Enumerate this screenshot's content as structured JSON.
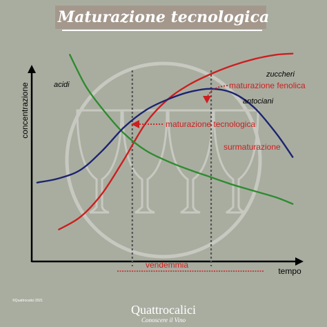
{
  "chart_data": {
    "type": "line",
    "title": "Maturazione tecnologica",
    "xlabel": "tempo",
    "ylabel": "concentrazione",
    "xlim": [
      0,
      100
    ],
    "ylim": [
      0,
      100
    ],
    "series": [
      {
        "name": "zuccheri",
        "color": "#cc1f1f",
        "x": [
          10,
          18,
          26,
          34,
          42,
          50,
          58,
          66,
          74,
          82,
          90,
          96
        ],
        "y": [
          15,
          21,
          32,
          48,
          65,
          76,
          83,
          88,
          92,
          95,
          97,
          97.5
        ]
      },
      {
        "name": "acidi",
        "color": "#2e8b2e",
        "x": [
          14,
          20,
          27,
          34,
          42,
          50,
          58,
          66,
          74,
          82,
          90,
          96
        ],
        "y": [
          97,
          82,
          70,
          60,
          52,
          47,
          43,
          39.5,
          36,
          33,
          30,
          27
        ]
      },
      {
        "name": "antociani",
        "color": "#1c2370",
        "x": [
          2,
          10,
          18,
          26,
          34,
          42,
          50,
          58,
          66,
          74,
          82,
          90,
          96
        ],
        "y": [
          37,
          39,
          43,
          52,
          63,
          71,
          76,
          79.5,
          81,
          79,
          72,
          60,
          49
        ]
      }
    ],
    "vlines": [
      {
        "x": 37,
        "label": "maturazione tecnologica"
      },
      {
        "x": 66,
        "label": "maturazione fenolica"
      }
    ],
    "annotations": {
      "surmaturazione": "surmaturazione",
      "vendemmia": "vendemmia"
    },
    "grid": false,
    "legend": "none"
  },
  "brand": {
    "name": "Quattrocalici",
    "tagline": "Conoscere il Vino",
    "copyright": "©Quattrocalici 2021"
  }
}
